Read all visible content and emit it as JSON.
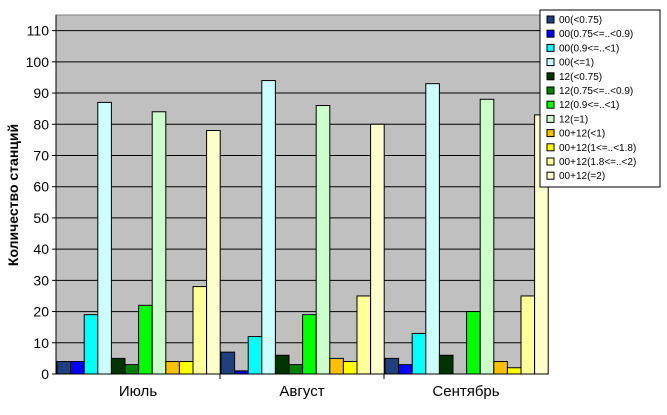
{
  "chart_data": {
    "type": "bar",
    "ylabel": "Количество станций",
    "xlabel": "",
    "ylim": [
      0,
      110
    ],
    "yticks": [
      0,
      10,
      20,
      30,
      40,
      50,
      60,
      70,
      80,
      90,
      100,
      110
    ],
    "grid": "horizontal",
    "legend_position": "right",
    "categories": [
      "Июль",
      "Август",
      "Сентябрь"
    ],
    "series": [
      {
        "name": "00(<0.75)",
        "color": "#1f3f7f",
        "values": [
          4,
          7,
          5
        ]
      },
      {
        "name": "00(0.75<=..<0.9)",
        "color": "#0000ff",
        "values": [
          4,
          1,
          3
        ]
      },
      {
        "name": "00(0.9<=..<1)",
        "color": "#00ffff",
        "values": [
          19,
          12,
          13
        ]
      },
      {
        "name": "00(<=1)",
        "color": "#ccffff",
        "values": [
          87,
          94,
          93
        ]
      },
      {
        "name": "12(<0.75)",
        "color": "#003300",
        "values": [
          5,
          6,
          6
        ]
      },
      {
        "name": "12(0.75<=..<0.9)",
        "color": "#008000",
        "values": [
          3,
          3,
          0
        ]
      },
      {
        "name": "12(0.9<=..<1)",
        "color": "#00ff00",
        "values": [
          22,
          19,
          20
        ]
      },
      {
        "name": "12(=1)",
        "color": "#ccffcc",
        "values": [
          84,
          86,
          88
        ]
      },
      {
        "name": "00+12(<1)",
        "color": "#ffc000",
        "values": [
          4,
          5,
          4
        ]
      },
      {
        "name": "00+12(1<=..<1.8)",
        "color": "#ffff00",
        "values": [
          4,
          4,
          2
        ]
      },
      {
        "name": "00+12(1.8<=..<2)",
        "color": "#ffff99",
        "values": [
          28,
          25,
          25
        ]
      },
      {
        "name": "00+12(=2)",
        "color": "#ffffcc",
        "values": [
          78,
          80,
          83
        ]
      }
    ]
  }
}
